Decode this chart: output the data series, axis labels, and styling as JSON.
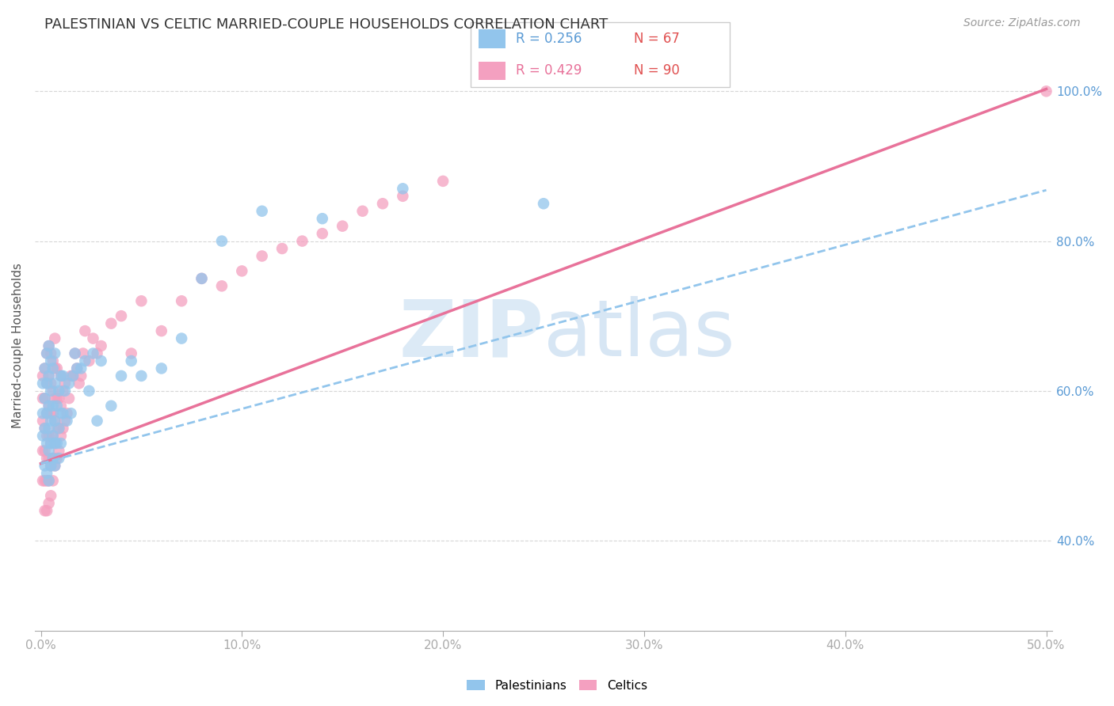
{
  "title": "PALESTINIAN VS CELTIC MARRIED-COUPLE HOUSEHOLDS CORRELATION CHART",
  "source": "Source: ZipAtlas.com",
  "ylabel": "Married-couple Households",
  "xlim": [
    -0.003,
    0.503
  ],
  "ylim": [
    0.28,
    1.04
  ],
  "y_ticks": [
    0.4,
    0.6,
    0.8,
    1.0
  ],
  "y_tick_labels": [
    "40.0%",
    "60.0%",
    "80.0%",
    "100.0%"
  ],
  "x_ticks": [
    0.0,
    0.1,
    0.2,
    0.3,
    0.4,
    0.5
  ],
  "x_tick_labels": [
    "0.0%",
    "10.0%",
    "20.0%",
    "30.0%",
    "40.0%",
    "50.0%"
  ],
  "legend_r1": "0.256",
  "legend_n1": "67",
  "legend_r2": "0.429",
  "legend_n2": "90",
  "color_blue": "#92C5EC",
  "color_pink": "#F4A0C0",
  "color_pink_line": "#E8729A",
  "color_blue_line": "#92C5EC",
  "color_axis": "#AAAAAA",
  "color_grid": "#CCCCCC",
  "color_label": "#5B9BD5",
  "color_red_n": "#E05050",
  "watermark_zip_color": "#C5DCF0",
  "watermark_atlas_color": "#A8C8E8",
  "blue_line_x0": 0.0,
  "blue_line_y0": 0.503,
  "blue_line_x1": 0.5,
  "blue_line_y1": 0.868,
  "pink_line_x0": 0.0,
  "pink_line_y0": 0.503,
  "pink_line_x1": 0.5,
  "pink_line_y1": 1.003,
  "palestinians_x": [
    0.001,
    0.001,
    0.001,
    0.002,
    0.002,
    0.002,
    0.002,
    0.003,
    0.003,
    0.003,
    0.003,
    0.003,
    0.004,
    0.004,
    0.004,
    0.004,
    0.004,
    0.004,
    0.005,
    0.005,
    0.005,
    0.005,
    0.005,
    0.006,
    0.006,
    0.006,
    0.006,
    0.007,
    0.007,
    0.007,
    0.007,
    0.007,
    0.008,
    0.008,
    0.009,
    0.009,
    0.009,
    0.01,
    0.01,
    0.01,
    0.011,
    0.011,
    0.012,
    0.013,
    0.014,
    0.015,
    0.016,
    0.017,
    0.018,
    0.02,
    0.022,
    0.024,
    0.026,
    0.028,
    0.03,
    0.035,
    0.04,
    0.045,
    0.05,
    0.06,
    0.07,
    0.08,
    0.09,
    0.11,
    0.14,
    0.18,
    0.25
  ],
  "palestinians_y": [
    0.57,
    0.61,
    0.54,
    0.5,
    0.55,
    0.59,
    0.63,
    0.49,
    0.53,
    0.57,
    0.61,
    0.65,
    0.48,
    0.52,
    0.55,
    0.58,
    0.62,
    0.66,
    0.5,
    0.53,
    0.56,
    0.6,
    0.64,
    0.51,
    0.54,
    0.58,
    0.63,
    0.5,
    0.53,
    0.56,
    0.61,
    0.65,
    0.53,
    0.58,
    0.51,
    0.55,
    0.6,
    0.53,
    0.57,
    0.62,
    0.57,
    0.62,
    0.6,
    0.56,
    0.61,
    0.57,
    0.62,
    0.65,
    0.63,
    0.63,
    0.64,
    0.6,
    0.65,
    0.56,
    0.64,
    0.58,
    0.62,
    0.64,
    0.62,
    0.63,
    0.67,
    0.75,
    0.8,
    0.84,
    0.83,
    0.87,
    0.85
  ],
  "celtics_x": [
    0.001,
    0.001,
    0.001,
    0.001,
    0.001,
    0.002,
    0.002,
    0.002,
    0.002,
    0.002,
    0.002,
    0.003,
    0.003,
    0.003,
    0.003,
    0.003,
    0.003,
    0.003,
    0.004,
    0.004,
    0.004,
    0.004,
    0.004,
    0.004,
    0.004,
    0.005,
    0.005,
    0.005,
    0.005,
    0.005,
    0.005,
    0.006,
    0.006,
    0.006,
    0.006,
    0.006,
    0.006,
    0.007,
    0.007,
    0.007,
    0.007,
    0.007,
    0.007,
    0.008,
    0.008,
    0.008,
    0.008,
    0.009,
    0.009,
    0.009,
    0.01,
    0.01,
    0.01,
    0.011,
    0.011,
    0.012,
    0.012,
    0.013,
    0.014,
    0.015,
    0.016,
    0.017,
    0.018,
    0.019,
    0.02,
    0.021,
    0.022,
    0.024,
    0.026,
    0.028,
    0.03,
    0.035,
    0.04,
    0.045,
    0.05,
    0.06,
    0.07,
    0.08,
    0.09,
    0.1,
    0.11,
    0.12,
    0.13,
    0.14,
    0.15,
    0.16,
    0.17,
    0.18,
    0.2,
    0.5
  ],
  "celtics_y": [
    0.56,
    0.59,
    0.62,
    0.48,
    0.52,
    0.44,
    0.48,
    0.52,
    0.55,
    0.59,
    0.63,
    0.44,
    0.48,
    0.51,
    0.54,
    0.57,
    0.61,
    0.65,
    0.45,
    0.48,
    0.51,
    0.54,
    0.58,
    0.62,
    0.66,
    0.46,
    0.5,
    0.53,
    0.57,
    0.61,
    0.65,
    0.48,
    0.51,
    0.54,
    0.57,
    0.6,
    0.64,
    0.5,
    0.53,
    0.56,
    0.59,
    0.63,
    0.67,
    0.51,
    0.55,
    0.59,
    0.63,
    0.52,
    0.55,
    0.59,
    0.54,
    0.58,
    0.62,
    0.55,
    0.6,
    0.56,
    0.61,
    0.57,
    0.59,
    0.62,
    0.62,
    0.65,
    0.63,
    0.61,
    0.62,
    0.65,
    0.68,
    0.64,
    0.67,
    0.65,
    0.66,
    0.69,
    0.7,
    0.65,
    0.72,
    0.68,
    0.72,
    0.75,
    0.74,
    0.76,
    0.78,
    0.79,
    0.8,
    0.81,
    0.82,
    0.84,
    0.85,
    0.86,
    0.88,
    1.0
  ]
}
